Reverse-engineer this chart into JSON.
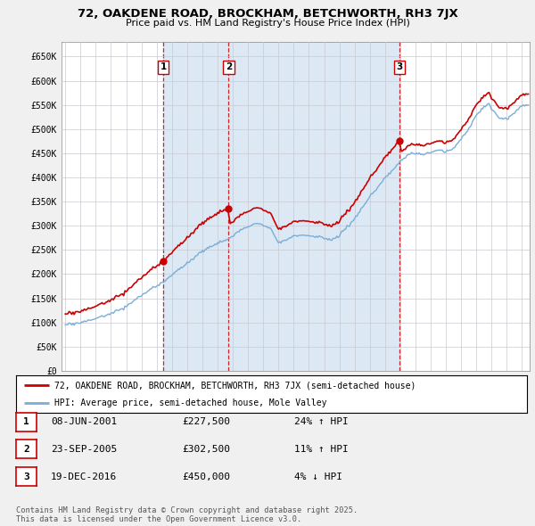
{
  "title1": "72, OAKDENE ROAD, BROCKHAM, BETCHWORTH, RH3 7JX",
  "title2": "Price paid vs. HM Land Registry's House Price Index (HPI)",
  "background_color": "#f0f0f0",
  "plot_bg_color": "#ffffff",
  "shade_color": "#dce9f5",
  "sale_dates": [
    2001.44,
    2005.73,
    2016.96
  ],
  "sale_prices": [
    227500,
    302500,
    450000
  ],
  "sale_labels": [
    "1",
    "2",
    "3"
  ],
  "legend_line1": "72, OAKDENE ROAD, BROCKHAM, BETCHWORTH, RH3 7JX (semi-detached house)",
  "legend_line2": "HPI: Average price, semi-detached house, Mole Valley",
  "table_rows": [
    {
      "num": "1",
      "date": "08-JUN-2001",
      "price": "£227,500",
      "hpi": "24% ↑ HPI"
    },
    {
      "num": "2",
      "date": "23-SEP-2005",
      "price": "£302,500",
      "hpi": "11% ↑ HPI"
    },
    {
      "num": "3",
      "date": "19-DEC-2016",
      "price": "£450,000",
      "hpi": "4% ↓ HPI"
    }
  ],
  "footer": "Contains HM Land Registry data © Crown copyright and database right 2025.\nThis data is licensed under the Open Government Licence v3.0.",
  "red_color": "#cc0000",
  "blue_color": "#7aaed6",
  "vline_color": "#cc0000",
  "ylim": [
    0,
    680000
  ],
  "yticks": [
    0,
    50000,
    100000,
    150000,
    200000,
    250000,
    300000,
    350000,
    400000,
    450000,
    500000,
    550000,
    600000,
    650000
  ],
  "xlim": [
    1994.75,
    2025.5
  ]
}
